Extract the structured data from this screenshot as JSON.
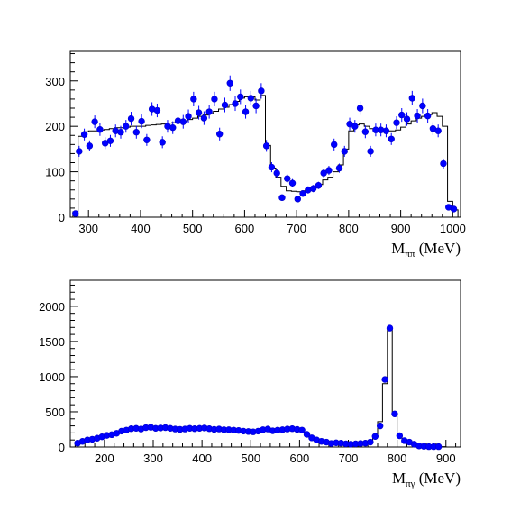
{
  "chart_data": [
    {
      "type": "scatter",
      "xlabel": "M",
      "xlabel_sub": "ππ",
      "xlabel_unit": " (MeV)",
      "xlim": [
        265,
        1015
      ],
      "ylim": [
        0,
        365
      ],
      "x_ticks": [
        300,
        400,
        500,
        600,
        700,
        800,
        900,
        1000
      ],
      "y_ticks": [
        0,
        100,
        200,
        300
      ],
      "grid": false,
      "series": [
        {
          "values": [
            [
              275,
              8,
              5
            ],
            [
              282,
              145,
              12
            ],
            [
              292,
              182,
              13
            ],
            [
              302,
              157,
              12
            ],
            [
              312,
              210,
              14
            ],
            [
              322,
              193,
              14
            ],
            [
              332,
              163,
              13
            ],
            [
              342,
              168,
              13
            ],
            [
              352,
              190,
              14
            ],
            [
              362,
              187,
              14
            ],
            [
              372,
              200,
              14
            ],
            [
              382,
              217,
              15
            ],
            [
              392,
              187,
              14
            ],
            [
              402,
              211,
              15
            ],
            [
              412,
              170,
              13
            ],
            [
              422,
              238,
              15
            ],
            [
              432,
              235,
              15
            ],
            [
              442,
              165,
              13
            ],
            [
              452,
              200,
              14
            ],
            [
              462,
              197,
              14
            ],
            [
              472,
              212,
              15
            ],
            [
              482,
              210,
              15
            ],
            [
              492,
              222,
              15
            ],
            [
              502,
              260,
              16
            ],
            [
              512,
              230,
              15
            ],
            [
              522,
              218,
              15
            ],
            [
              532,
              232,
              15
            ],
            [
              542,
              260,
              16
            ],
            [
              552,
              183,
              14
            ],
            [
              562,
              247,
              16
            ],
            [
              572,
              295,
              17
            ],
            [
              582,
              250,
              16
            ],
            [
              592,
              265,
              16
            ],
            [
              602,
              232,
              15
            ],
            [
              612,
              262,
              16
            ],
            [
              622,
              245,
              16
            ],
            [
              632,
              278,
              17
            ],
            [
              642,
              157,
              13
            ],
            [
              652,
              110,
              11
            ],
            [
              662,
              97,
              10
            ],
            [
              672,
              43,
              7
            ],
            [
              682,
              85,
              9
            ],
            [
              692,
              75,
              9
            ],
            [
              702,
              40,
              6
            ],
            [
              712,
              52,
              7
            ],
            [
              722,
              60,
              8
            ],
            [
              732,
              63,
              8
            ],
            [
              742,
              70,
              8
            ],
            [
              752,
              97,
              10
            ],
            [
              762,
              103,
              10
            ],
            [
              772,
              160,
              13
            ],
            [
              782,
              108,
              10
            ],
            [
              792,
              145,
              12
            ],
            [
              802,
              205,
              14
            ],
            [
              812,
              200,
              14
            ],
            [
              822,
              240,
              15
            ],
            [
              832,
              188,
              14
            ],
            [
              842,
              145,
              12
            ],
            [
              852,
              192,
              14
            ],
            [
              862,
              192,
              14
            ],
            [
              872,
              190,
              14
            ],
            [
              882,
              172,
              13
            ],
            [
              892,
              208,
              14
            ],
            [
              902,
              225,
              15
            ],
            [
              912,
              216,
              15
            ],
            [
              922,
              262,
              16
            ],
            [
              932,
              223,
              15
            ],
            [
              942,
              245,
              16
            ],
            [
              952,
              223,
              15
            ],
            [
              962,
              195,
              14
            ],
            [
              972,
              190,
              14
            ],
            [
              982,
              118,
              11
            ],
            [
              992,
              22,
              5
            ],
            [
              1002,
              18,
              5
            ]
          ]
        },
        {
          "type": "step",
          "edges": [
            270,
            280,
            290,
            300,
            310,
            320,
            330,
            340,
            350,
            360,
            370,
            380,
            390,
            400,
            410,
            420,
            430,
            440,
            450,
            460,
            470,
            480,
            490,
            500,
            510,
            520,
            530,
            540,
            550,
            560,
            570,
            580,
            590,
            600,
            610,
            620,
            630,
            640,
            650,
            660,
            670,
            680,
            690,
            700,
            710,
            720,
            730,
            740,
            750,
            760,
            770,
            780,
            790,
            800,
            810,
            820,
            830,
            840,
            850,
            860,
            870,
            880,
            890,
            900,
            910,
            920,
            930,
            940,
            950,
            960,
            970,
            980,
            990,
            1000,
            1010
          ],
          "values": [
            12,
            178,
            188,
            190,
            190,
            192,
            193,
            195,
            197,
            197,
            198,
            200,
            200,
            200,
            202,
            203,
            204,
            205,
            207,
            208,
            210,
            212,
            215,
            218,
            222,
            225,
            228,
            233,
            238,
            242,
            248,
            255,
            262,
            265,
            265,
            258,
            268,
            158,
            108,
            88,
            68,
            58,
            57,
            56,
            58,
            60,
            65,
            72,
            82,
            88,
            100,
            115,
            150,
            190,
            203,
            205,
            200,
            195,
            193,
            192,
            190,
            190,
            192,
            198,
            205,
            212,
            218,
            222,
            226,
            230,
            222,
            200,
            35,
            16
          ]
        }
      ]
    },
    {
      "type": "scatter",
      "xlabel": "M",
      "xlabel_sub": "πγ",
      "xlabel_unit": " (MeV)",
      "xlim": [
        130,
        930
      ],
      "ylim": [
        0,
        2370
      ],
      "x_ticks": [
        200,
        300,
        400,
        500,
        600,
        700,
        800,
        900
      ],
      "y_ticks": [
        0,
        500,
        1000,
        1500,
        2000
      ],
      "grid": false,
      "series": [
        {
          "values": [
            [
              145,
              55
            ],
            [
              155,
              80
            ],
            [
              165,
              100
            ],
            [
              175,
              110
            ],
            [
              185,
              125
            ],
            [
              195,
              145
            ],
            [
              205,
              165
            ],
            [
              215,
              175
            ],
            [
              225,
              195
            ],
            [
              235,
              225
            ],
            [
              245,
              240
            ],
            [
              255,
              260
            ],
            [
              265,
              265
            ],
            [
              275,
              255
            ],
            [
              285,
              275
            ],
            [
              295,
              280
            ],
            [
              305,
              265
            ],
            [
              315,
              270
            ],
            [
              325,
              275
            ],
            [
              335,
              265
            ],
            [
              345,
              255
            ],
            [
              355,
              250
            ],
            [
              365,
              255
            ],
            [
              375,
              265
            ],
            [
              385,
              260
            ],
            [
              395,
              265
            ],
            [
              405,
              270
            ],
            [
              415,
              260
            ],
            [
              425,
              250
            ],
            [
              435,
              255
            ],
            [
              445,
              245
            ],
            [
              455,
              245
            ],
            [
              465,
              240
            ],
            [
              475,
              235
            ],
            [
              485,
              225
            ],
            [
              495,
              220
            ],
            [
              505,
              215
            ],
            [
              515,
              225
            ],
            [
              525,
              245
            ],
            [
              535,
              255
            ],
            [
              545,
              230
            ],
            [
              555,
              240
            ],
            [
              565,
              245
            ],
            [
              575,
              255
            ],
            [
              585,
              260
            ],
            [
              595,
              250
            ],
            [
              605,
              240
            ],
            [
              615,
              180
            ],
            [
              625,
              130
            ],
            [
              635,
              100
            ],
            [
              645,
              80
            ],
            [
              655,
              70
            ],
            [
              665,
              50
            ],
            [
              675,
              60
            ],
            [
              685,
              55
            ],
            [
              695,
              45
            ],
            [
              705,
              40
            ],
            [
              715,
              45
            ],
            [
              725,
              50
            ],
            [
              735,
              55
            ],
            [
              745,
              70
            ],
            [
              755,
              150
            ],
            [
              765,
              300
            ],
            [
              775,
              960
            ],
            [
              785,
              1690
            ],
            [
              795,
              470
            ],
            [
              805,
              160
            ],
            [
              815,
              90
            ],
            [
              825,
              70
            ],
            [
              835,
              40
            ],
            [
              845,
              15
            ],
            [
              855,
              10
            ],
            [
              865,
              5
            ],
            [
              875,
              5
            ],
            [
              885,
              5
            ]
          ]
        },
        {
          "type": "step",
          "edges": [
            140,
            150,
            160,
            170,
            180,
            190,
            200,
            210,
            220,
            230,
            240,
            250,
            260,
            270,
            280,
            290,
            300,
            310,
            320,
            330,
            340,
            350,
            360,
            370,
            380,
            390,
            400,
            410,
            420,
            430,
            440,
            450,
            460,
            470,
            480,
            490,
            500,
            510,
            520,
            530,
            540,
            550,
            560,
            570,
            580,
            590,
            600,
            610,
            620,
            630,
            640,
            650,
            660,
            670,
            680,
            690,
            700,
            710,
            720,
            730,
            740,
            750,
            760,
            770,
            780,
            790,
            800,
            810,
            820,
            830,
            840,
            850,
            860,
            870,
            880,
            890,
            900
          ],
          "values": [
            50,
            70,
            90,
            110,
            125,
            145,
            160,
            175,
            200,
            220,
            235,
            245,
            255,
            260,
            265,
            265,
            265,
            265,
            265,
            262,
            260,
            258,
            258,
            260,
            262,
            262,
            262,
            260,
            258,
            255,
            252,
            250,
            248,
            245,
            240,
            235,
            232,
            232,
            235,
            240,
            245,
            248,
            250,
            252,
            255,
            255,
            250,
            200,
            120,
            95,
            85,
            70,
            60,
            55,
            50,
            45,
            45,
            48,
            55,
            60,
            80,
            160,
            360,
            900,
            1680,
            480,
            160,
            90,
            65,
            40,
            20,
            12,
            8,
            5,
            5,
            5
          ]
        }
      ]
    }
  ]
}
